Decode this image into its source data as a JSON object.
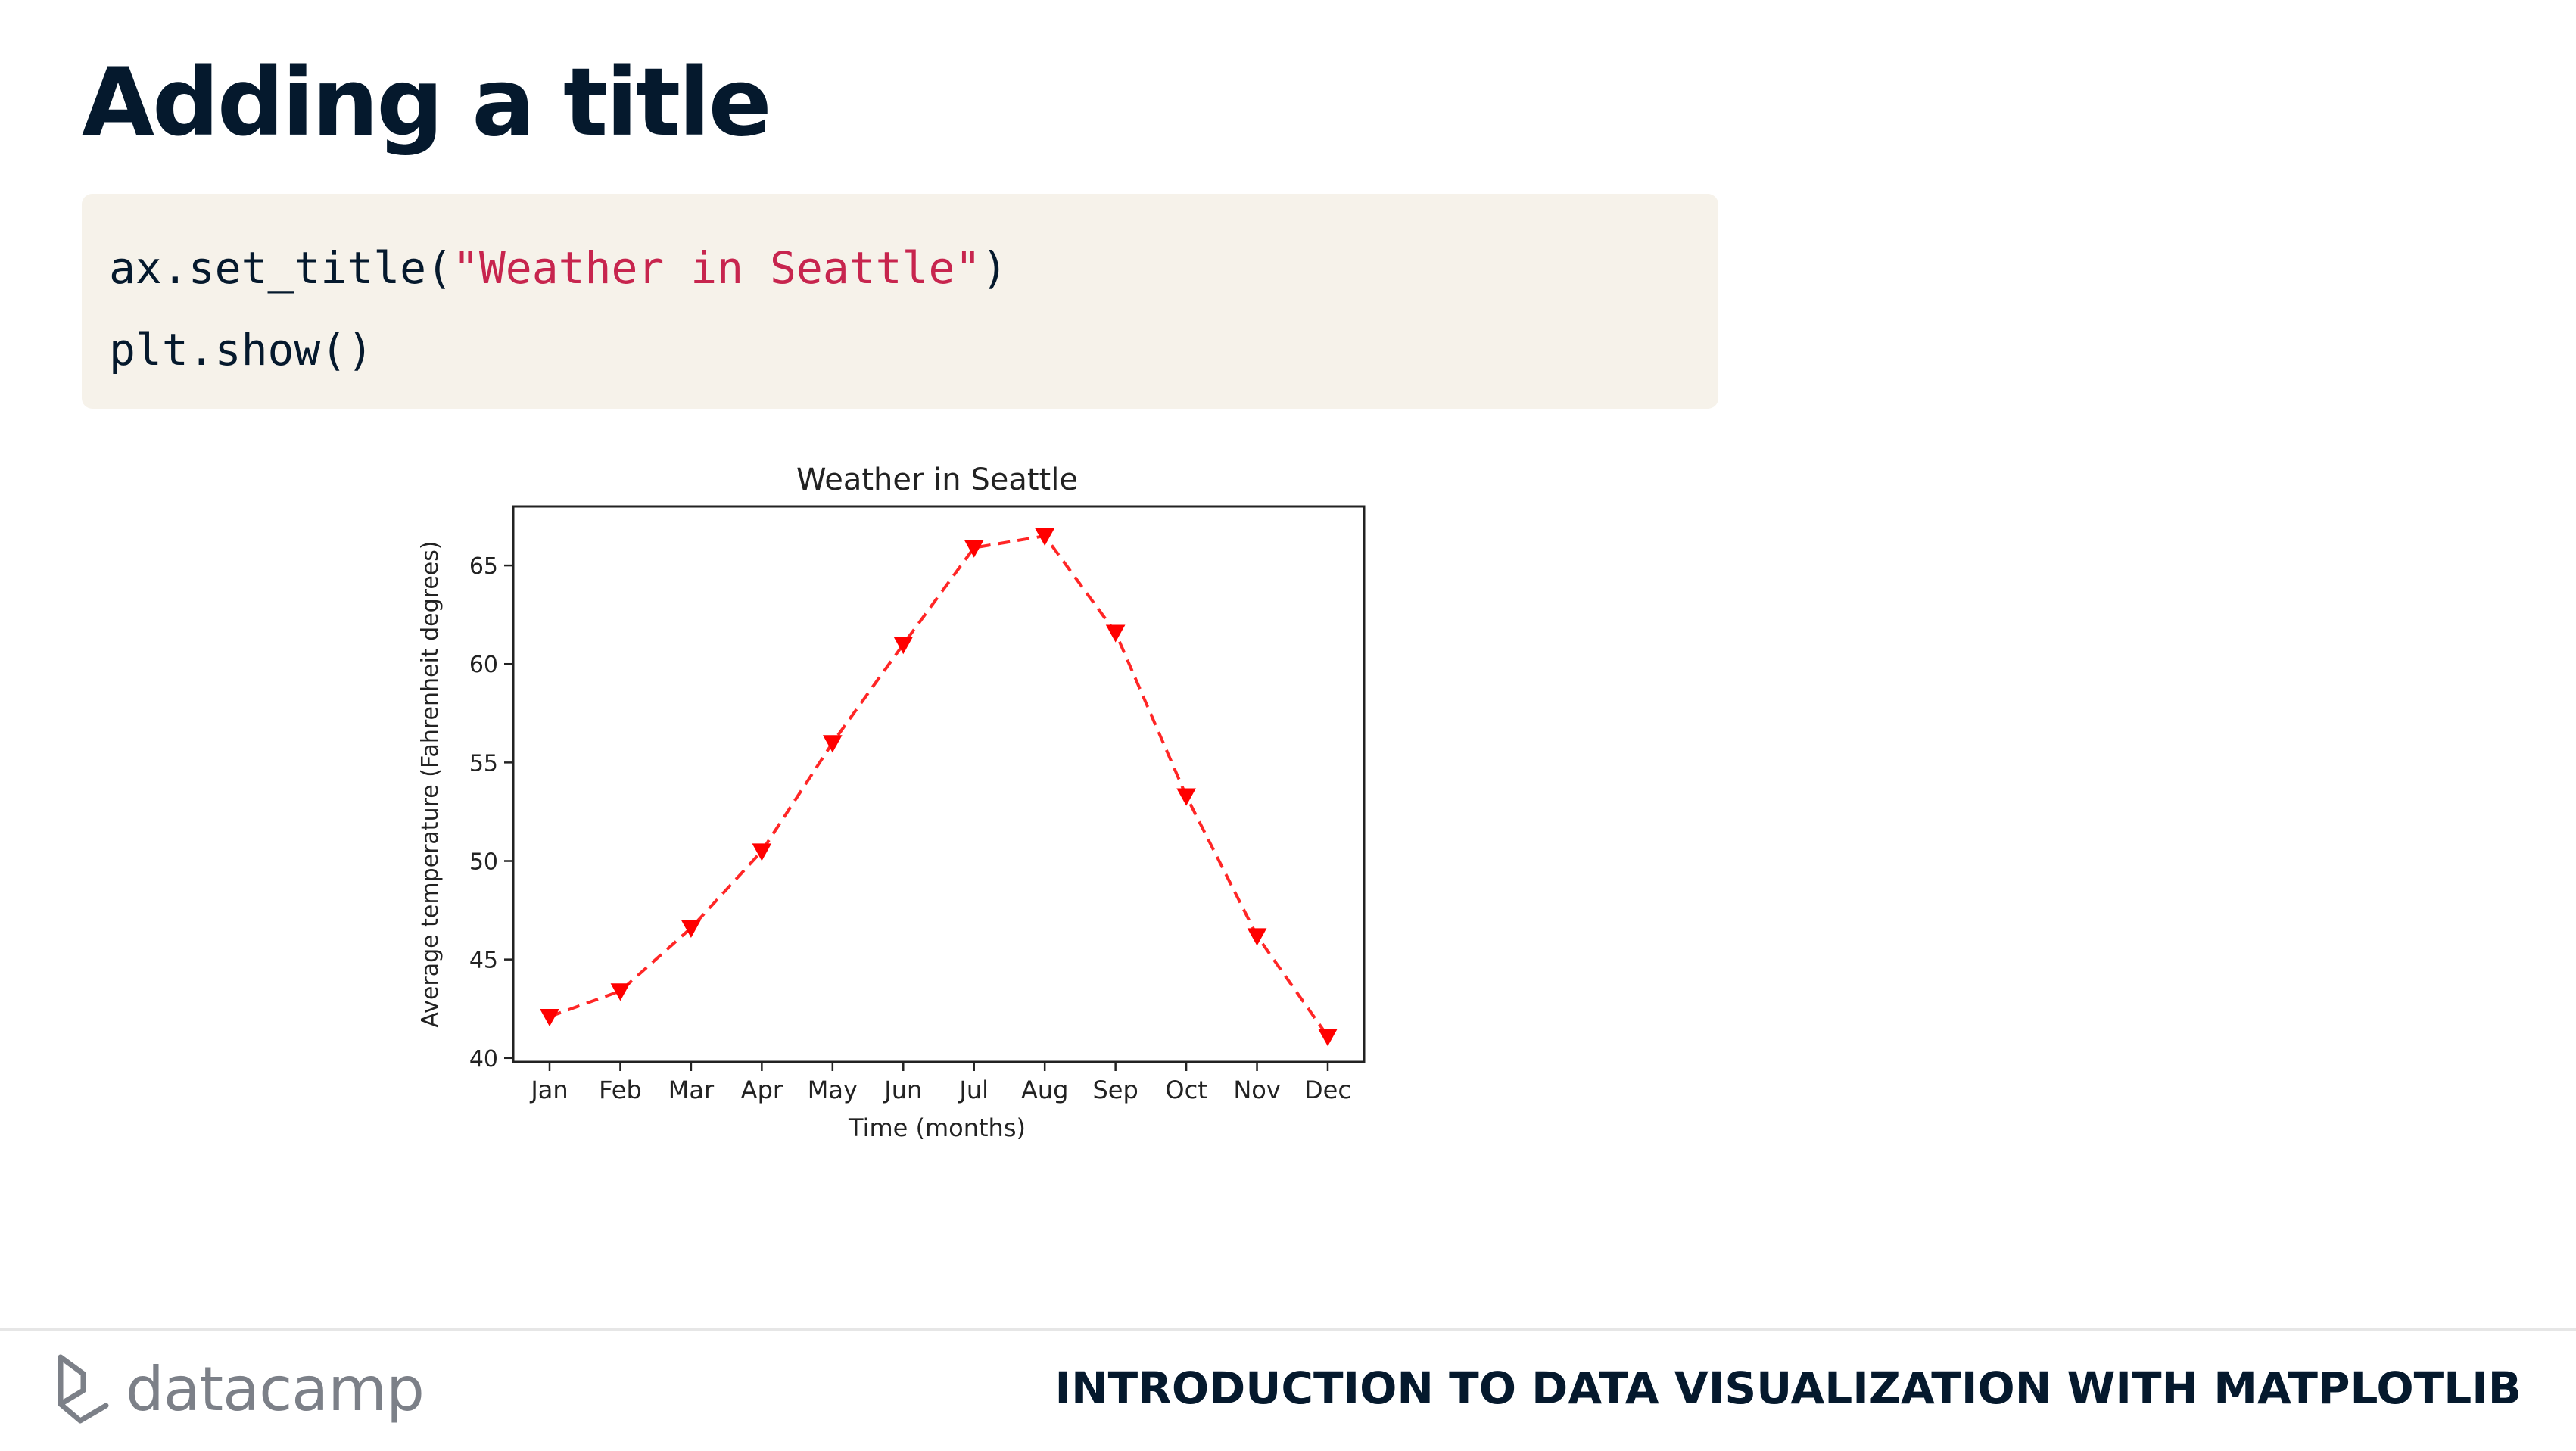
{
  "slide": {
    "title": "Adding a title"
  },
  "code": {
    "lines": [
      {
        "pre": "ax.set_title(",
        "str": "\"Weather in Seattle\"",
        "post": ")"
      },
      {
        "pre": "plt.show()",
        "str": "",
        "post": ""
      }
    ]
  },
  "chart_data": {
    "type": "line",
    "title": "Weather in Seattle",
    "xlabel": "Time (months)",
    "ylabel": "Average temperature (Fahrenheit degrees)",
    "categories": [
      "Jan",
      "Feb",
      "Mar",
      "Apr",
      "May",
      "Jun",
      "Jul",
      "Aug",
      "Sep",
      "Oct",
      "Nov",
      "Dec"
    ],
    "values": [
      42.1,
      43.4,
      46.6,
      50.5,
      56.0,
      61.0,
      65.9,
      66.5,
      61.6,
      53.3,
      46.2,
      41.1
    ],
    "yticks": [
      40,
      45,
      50,
      55,
      60,
      65
    ],
    "ylim": [
      39.8,
      68.0
    ],
    "line_color": "#ff0000",
    "line_style": "dashed",
    "marker": "triangle-down",
    "grid": false
  },
  "footer": {
    "brand": "datacamp",
    "course": "INTRODUCTION TO DATA VISUALIZATION WITH MATPLOTLIB"
  },
  "colors": {
    "title": "#05192d",
    "code_bg": "#f6f2ea",
    "code_string": "#c7254e",
    "brand_gray": "#7c8088"
  }
}
